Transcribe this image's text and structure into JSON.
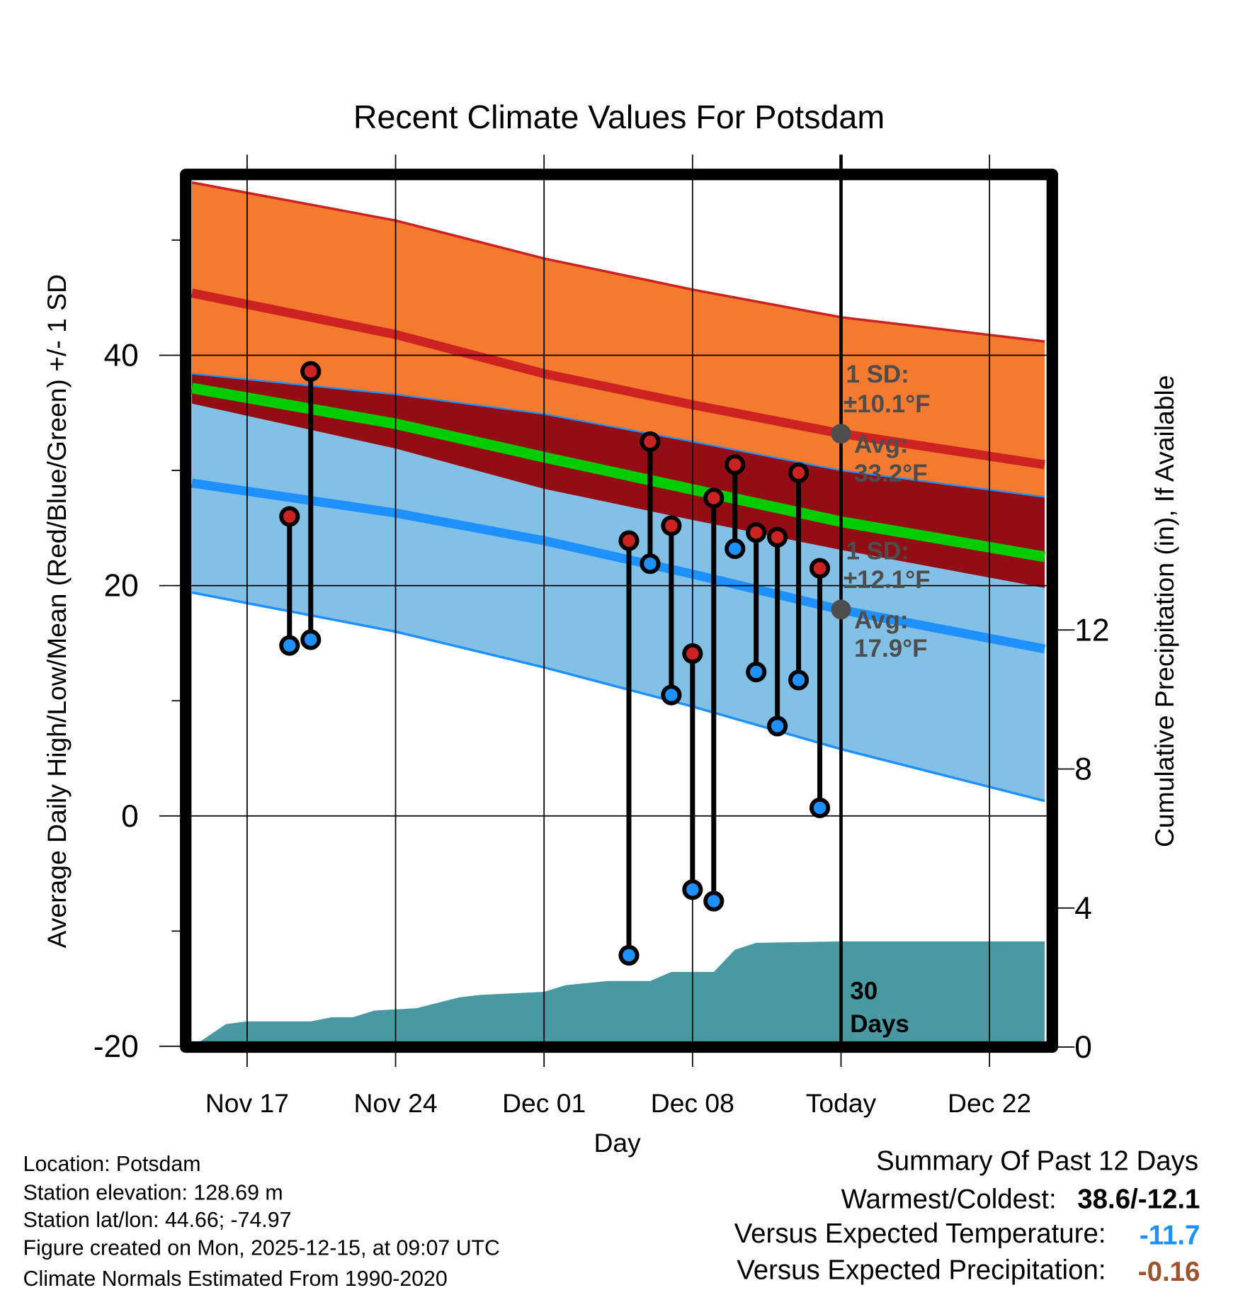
{
  "chart_data": {
    "type": "line",
    "title": "Recent Climate Values For Potsdam",
    "xlabel": "Day",
    "ylabel": "Average Daily High/Low/Mean (Red/Blue/Green) +/- 1 SD",
    "y2label": "Cumulative Precipitation (in), If Available",
    "x_unit": "days relative to today",
    "xlim": [
      -30.6,
      9.6
    ],
    "ylim": [
      -20,
      55
    ],
    "y2lim": [
      0,
      17.8
    ],
    "x_ticks": [
      {
        "day": -28,
        "label": "Nov 17"
      },
      {
        "day": -21,
        "label": "Nov 24"
      },
      {
        "day": -14,
        "label": "Dec 01"
      },
      {
        "day": -7,
        "label": "Dec 08"
      },
      {
        "day": 0,
        "label": "Today"
      },
      {
        "day": 7,
        "label": "Dec 22"
      }
    ],
    "y_ticks": [
      -20,
      0,
      20,
      40
    ],
    "y_minor_ticks": [
      -10,
      10,
      30,
      50
    ],
    "y2_ticks": [
      0,
      4,
      8,
      12
    ],
    "normals": {
      "day": [
        -30.6,
        -21,
        -14,
        -7,
        0,
        9.6
      ],
      "high_avg": [
        45.4,
        41.8,
        38.4,
        35.7,
        33.2,
        30.5
      ],
      "high_sd": [
        9.6,
        9.9,
        10.0,
        10.0,
        10.1,
        10.7
      ],
      "low_avg": [
        28.9,
        26.3,
        23.9,
        21.0,
        17.9,
        14.5
      ],
      "low_sd": [
        9.5,
        10.3,
        11.0,
        11.5,
        12.1,
        13.2
      ]
    },
    "observations": {
      "day": [
        -26,
        -25,
        -10,
        -9,
        -8,
        -7,
        -6,
        -5,
        -4,
        -3,
        -2,
        -1
      ],
      "high": [
        26.0,
        38.6,
        23.9,
        32.5,
        25.2,
        14.1,
        27.6,
        30.5,
        24.6,
        24.2,
        29.8,
        21.5
      ],
      "low": [
        14.8,
        15.3,
        -12.1,
        21.9,
        10.5,
        -6.4,
        -7.4,
        23.2,
        12.5,
        7.8,
        11.8,
        0.7
      ]
    },
    "precipitation": {
      "day": [
        -30.6,
        -29,
        -28,
        -25,
        -24,
        -23,
        -22,
        -20,
        -18,
        -17,
        -14,
        -13,
        -11,
        -9,
        -8,
        -6,
        -5,
        -4,
        0,
        9.6
      ],
      "cumulative_in": [
        0,
        0.66,
        0.74,
        0.74,
        0.86,
        0.86,
        1.05,
        1.12,
        1.43,
        1.5,
        1.59,
        1.78,
        1.9,
        1.9,
        2.16,
        2.16,
        2.8,
        3.0,
        3.04,
        3.04
      ]
    },
    "annotations": {
      "high_sd": "1 SD:",
      "high_sd_value": "±10.1°F",
      "high_avg": "Avg:",
      "high_avg_value": "33.2°F",
      "low_sd": "1 SD:",
      "low_sd_value": "±12.1°F",
      "low_avg": "Avg:",
      "low_avg_value": "17.9°F",
      "window_num": "30",
      "window_unit": "Days"
    },
    "colors": {
      "high_band": "#f47a2f",
      "high_line": "#cc2222",
      "overlap": "#930d14",
      "mean_line": "#00cc00",
      "low_band": "#82c0e6",
      "low_line": "#1e90ff",
      "precip": "#4899a2",
      "annotation": "#4d4d4d"
    }
  },
  "info": {
    "location": "Location: Potsdam",
    "elevation": "Station elevation: 128.69 m",
    "latlon": "Station lat/lon: 44.66; -74.97",
    "created": "Figure created on Mon, 2025-12-15, at 09:07 UTC",
    "normals": "Climate Normals Estimated From 1990-2020"
  },
  "summary": {
    "title": "Summary Of Past 12 Days",
    "warmest_coldest_label": "Warmest/Coldest:",
    "warmest_coldest_value": "38.6/-12.1",
    "temp_label": "Versus Expected Temperature:",
    "temp_value": "-11.7",
    "temp_color": "#1e90ff",
    "precip_label": "Versus Expected Precipitation:",
    "precip_value": "-0.16",
    "precip_color": "#a0522d"
  }
}
